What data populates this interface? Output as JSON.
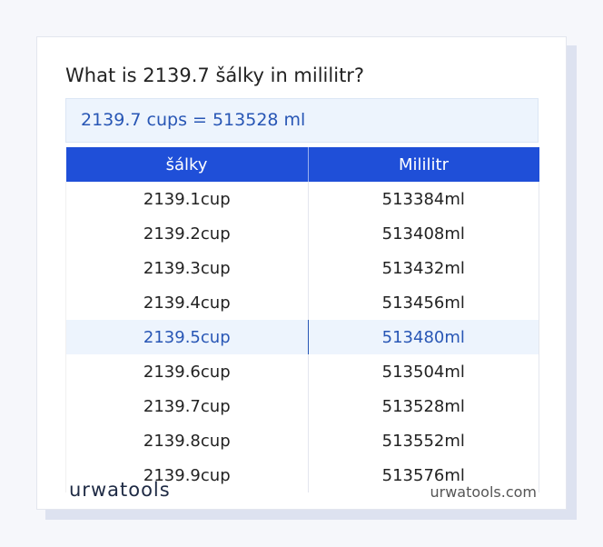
{
  "header": {
    "title": "What is 2139.7 šálky in mililitr?"
  },
  "result": "2139.7 cups = 513528 ml",
  "table": {
    "columns": [
      "šálky",
      "Mililitr"
    ],
    "rows": [
      [
        "2139.1cup",
        "513384ml"
      ],
      [
        "2139.2cup",
        "513408ml"
      ],
      [
        "2139.3cup",
        "513432ml"
      ],
      [
        "2139.4cup",
        "513456ml"
      ],
      [
        "2139.5cup",
        "513480ml"
      ],
      [
        "2139.6cup",
        "513504ml"
      ],
      [
        "2139.7cup",
        "513528ml"
      ],
      [
        "2139.8cup",
        "513552ml"
      ],
      [
        "2139.9cup",
        "513576ml"
      ]
    ]
  },
  "footer": {
    "logo": "urwatools",
    "site": "urwatools.com"
  }
}
